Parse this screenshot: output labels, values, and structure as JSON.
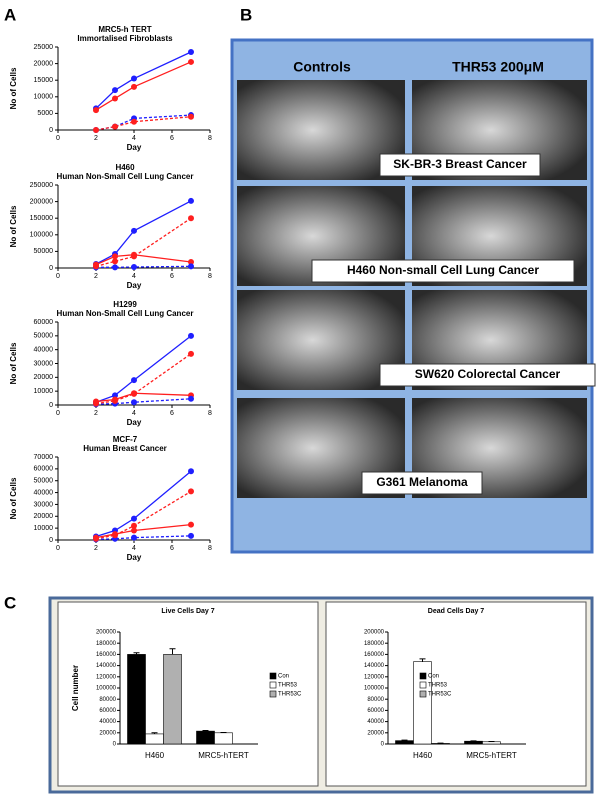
{
  "panels": {
    "a": "A",
    "b": "B",
    "c": "C"
  },
  "micrographs": {
    "columns": [
      "Controls",
      "THR53 200μM"
    ],
    "rows": [
      "SK-BR-3 Breast Cancer",
      "H460 Non-small Cell Lung Cancer",
      "SW620 Colorectal Cancer",
      "G361 Melanoma"
    ]
  },
  "chart_data": [
    {
      "type": "line",
      "title": "MRC5-h TERT",
      "subtitle": "Immortalised Fibroblasts",
      "xlabel": "Day",
      "ylabel": "No of Cells",
      "x": [
        2,
        3,
        4,
        7
      ],
      "xlim": [
        0,
        8
      ],
      "xticks": [
        0,
        2,
        4,
        6,
        8
      ],
      "ylim": [
        0,
        25000
      ],
      "yticks": [
        0,
        5000,
        10000,
        15000,
        20000,
        25000
      ],
      "series": [
        {
          "color": "#1f1fff",
          "dashed": false,
          "values": [
            6500,
            12000,
            15500,
            23500
          ]
        },
        {
          "color": "#ff1f1f",
          "dashed": false,
          "values": [
            6000,
            9500,
            13000,
            20500
          ]
        },
        {
          "color": "#1f1fff",
          "dashed": true,
          "values": [
            0,
            1000,
            3500,
            4500
          ]
        },
        {
          "color": "#ff1f1f",
          "dashed": true,
          "values": [
            0,
            1000,
            2500,
            4000
          ]
        }
      ]
    },
    {
      "type": "line",
      "title": "H460",
      "subtitle": "Human Non-Small Cell Lung Cancer",
      "xlabel": "Day",
      "ylabel": "No of Cells",
      "x": [
        2,
        3,
        4,
        7
      ],
      "xlim": [
        0,
        8
      ],
      "xticks": [
        0,
        2,
        4,
        6,
        8
      ],
      "ylim": [
        0,
        250000
      ],
      "yticks": [
        0,
        50000,
        100000,
        150000,
        200000,
        250000
      ],
      "series": [
        {
          "color": "#1f1fff",
          "dashed": false,
          "values": [
            12000,
            42000,
            112000,
            202000
          ]
        },
        {
          "color": "#ff1f1f",
          "dashed": false,
          "values": [
            10000,
            35000,
            40000,
            18000
          ]
        },
        {
          "color": "#1f1fff",
          "dashed": true,
          "values": [
            2000,
            2000,
            3000,
            5000
          ]
        },
        {
          "color": "#ff1f1f",
          "dashed": true,
          "values": [
            5000,
            20000,
            35000,
            150000
          ]
        }
      ]
    },
    {
      "type": "line",
      "title": "H1299",
      "subtitle": "Human Non-Small Cell Lung Cancer",
      "xlabel": "Day",
      "ylabel": "No of Cells",
      "x": [
        2,
        3,
        4,
        7
      ],
      "xlim": [
        0,
        8
      ],
      "xticks": [
        0,
        2,
        4,
        6,
        8
      ],
      "ylim": [
        0,
        60000
      ],
      "yticks": [
        0,
        10000,
        20000,
        30000,
        40000,
        50000,
        60000
      ],
      "series": [
        {
          "color": "#1f1fff",
          "dashed": false,
          "values": [
            2000,
            7000,
            18000,
            50000
          ]
        },
        {
          "color": "#ff1f1f",
          "dashed": false,
          "values": [
            2500,
            4000,
            8500,
            7000
          ]
        },
        {
          "color": "#1f1fff",
          "dashed": true,
          "values": [
            500,
            1000,
            2000,
            4500
          ]
        },
        {
          "color": "#ff1f1f",
          "dashed": true,
          "values": [
            1000,
            3000,
            8000,
            37000
          ]
        }
      ]
    },
    {
      "type": "line",
      "title": "MCF-7",
      "subtitle": "Human Breast Cancer",
      "xlabel": "Day",
      "ylabel": "No of Cells",
      "x": [
        2,
        3,
        4,
        7
      ],
      "xlim": [
        0,
        8
      ],
      "xticks": [
        0,
        2,
        4,
        6,
        8
      ],
      "ylim": [
        0,
        70000
      ],
      "yticks": [
        0,
        10000,
        20000,
        30000,
        40000,
        50000,
        60000,
        70000
      ],
      "series": [
        {
          "color": "#1f1fff",
          "dashed": false,
          "values": [
            3000,
            8000,
            18000,
            58000
          ]
        },
        {
          "color": "#ff1f1f",
          "dashed": false,
          "values": [
            2000,
            5000,
            8000,
            13000
          ]
        },
        {
          "color": "#1f1fff",
          "dashed": true,
          "values": [
            500,
            1000,
            2000,
            3500
          ]
        },
        {
          "color": "#ff1f1f",
          "dashed": true,
          "values": [
            1000,
            4000,
            12000,
            41000
          ]
        }
      ]
    },
    {
      "type": "bar",
      "title": "Live Cells Day 7",
      "ylabel": "Cell number",
      "categories": [
        "H460",
        "MRC5-hTERT"
      ],
      "ylim": [
        0,
        200000
      ],
      "yticks": [
        0,
        20000,
        40000,
        60000,
        80000,
        100000,
        120000,
        140000,
        160000,
        180000,
        200000
      ],
      "series": [
        {
          "name": "Con",
          "color": "#000000",
          "values": [
            160000,
            23000
          ],
          "errors": [
            3000,
            1000
          ]
        },
        {
          "name": "THR53",
          "color": "#ffffff",
          "values": [
            18000,
            20000
          ],
          "errors": [
            2000,
            500
          ]
        },
        {
          "name": "THR53C",
          "color": "#b0b0b0",
          "values": [
            160000,
            null
          ],
          "errors": [
            10000,
            null
          ]
        }
      ]
    },
    {
      "type": "bar",
      "title": "Dead Cells Day 7",
      "categories": [
        "H460",
        "MRC5-hTERT"
      ],
      "ylim": [
        0,
        200000
      ],
      "yticks": [
        0,
        20000,
        40000,
        60000,
        80000,
        100000,
        120000,
        140000,
        160000,
        180000,
        200000
      ],
      "series": [
        {
          "name": "Con",
          "color": "#000000",
          "values": [
            6000,
            5000
          ],
          "errors": [
            1000,
            500
          ]
        },
        {
          "name": "THR53",
          "color": "#ffffff",
          "values": [
            147000,
            4000
          ],
          "errors": [
            5000,
            500
          ]
        },
        {
          "name": "THR53C",
          "color": "#b0b0b0",
          "values": [
            1000,
            null
          ],
          "errors": [
            500,
            null
          ]
        }
      ]
    }
  ]
}
